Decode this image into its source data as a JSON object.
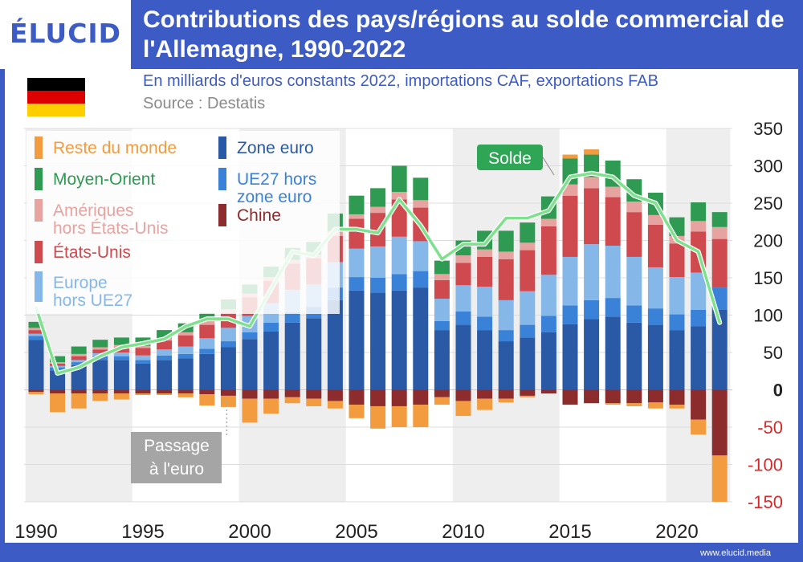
{
  "brand": {
    "logo_text": "ÉLUCID",
    "footer_url": "www.elucid.media"
  },
  "header": {
    "title": "Contributions des pays/régions au solde commercial de l'Allemagne, 1990-2022",
    "subtitle": "En milliards d'euros constants 2022, importations CAF, exportations FAB",
    "source": "Source : Destatis"
  },
  "flag_colors": [
    "#000000",
    "#dd0000",
    "#ffce00"
  ],
  "colors": {
    "zone_euro": "#2a5aa5",
    "ue27_hors_ze": "#3a82d8",
    "europe_hors_ue": "#86b7e9",
    "etats_unis": "#cf4a4f",
    "ameriques_hors_us": "#e7a3a0",
    "moyen_orient": "#2f9a52",
    "reste_du_monde": "#f39b3f",
    "chine": "#8c2c2c",
    "solde": "#7fe08e",
    "negative_tick": "#d62a2a"
  },
  "chart_data": {
    "type": "bar",
    "stacked": true,
    "x": [
      1990,
      1991,
      1992,
      1993,
      1994,
      1995,
      1996,
      1997,
      1998,
      1999,
      2000,
      2001,
      2002,
      2003,
      2004,
      2005,
      2006,
      2007,
      2008,
      2009,
      2010,
      2011,
      2012,
      2013,
      2014,
      2015,
      2016,
      2017,
      2018,
      2019,
      2020,
      2021,
      2022
    ],
    "ylim": [
      -150,
      350
    ],
    "yticks": [
      350,
      300,
      250,
      200,
      150,
      100,
      50,
      0,
      -50,
      -100,
      -150
    ],
    "xticks": [
      1990,
      1995,
      2000,
      2005,
      2010,
      2015,
      2020
    ],
    "grid": true,
    "legend": "top-left",
    "series": [
      {
        "key": "zone_euro",
        "name": "Zone euro",
        "values": [
          67,
          26,
          33,
          40,
          40,
          35,
          40,
          42,
          48,
          57,
          68,
          78,
          90,
          96,
          120,
          133,
          130,
          133,
          137,
          80,
          87,
          80,
          65,
          70,
          77,
          88,
          95,
          98,
          90,
          87,
          80,
          85,
          107
        ]
      },
      {
        "key": "ue27_hors_ze",
        "name": "UE27 hors zone euro",
        "values": [
          5,
          4,
          4,
          5,
          5,
          5,
          6,
          6,
          7,
          8,
          9,
          12,
          14,
          15,
          17,
          18,
          20,
          22,
          22,
          12,
          18,
          18,
          15,
          17,
          22,
          25,
          25,
          25,
          23,
          22,
          21,
          22,
          30
        ]
      },
      {
        "key": "europe_hors_ue",
        "name": "Europe hors UE27",
        "values": [
          3,
          2,
          3,
          4,
          5,
          6,
          8,
          10,
          14,
          18,
          22,
          26,
          30,
          30,
          34,
          38,
          42,
          50,
          40,
          30,
          35,
          40,
          40,
          45,
          55,
          65,
          75,
          70,
          65,
          55,
          50,
          50,
          0
        ]
      },
      {
        "key": "etats_unis",
        "name": "États-Unis",
        "values": [
          5,
          3,
          5,
          5,
          7,
          10,
          12,
          15,
          18,
          20,
          25,
          30,
          35,
          35,
          35,
          40,
          45,
          50,
          45,
          25,
          30,
          40,
          55,
          55,
          65,
          82,
          75,
          65,
          60,
          57,
          45,
          55,
          65
        ]
      },
      {
        "key": "ameriques_hors_us",
        "name": "Amériques hors États-Unis",
        "values": [
          3,
          2,
          3,
          3,
          3,
          3,
          3,
          4,
          5,
          5,
          5,
          5,
          5,
          5,
          6,
          6,
          8,
          10,
          10,
          8,
          10,
          10,
          10,
          10,
          10,
          15,
          15,
          14,
          14,
          13,
          10,
          14,
          16
        ]
      },
      {
        "key": "moyen_orient",
        "name": "Moyen-Orient",
        "values": [
          8,
          8,
          10,
          10,
          10,
          11,
          11,
          12,
          11,
          13,
          12,
          14,
          16,
          17,
          24,
          25,
          25,
          35,
          30,
          18,
          20,
          25,
          28,
          27,
          30,
          35,
          30,
          35,
          30,
          30,
          25,
          25,
          20
        ]
      },
      {
        "key": "reste_du_monde",
        "name": "Reste du monde",
        "values": [
          0,
          0,
          0,
          0,
          0,
          0,
          0,
          0,
          0,
          0,
          0,
          0,
          0,
          0,
          0,
          0,
          0,
          0,
          0,
          0,
          0,
          0,
          0,
          0,
          0,
          5,
          7,
          0,
          0,
          0,
          0,
          0,
          0
        ]
      },
      {
        "key": "chine",
        "name": "Chine",
        "values": [
          -3,
          -5,
          -5,
          -5,
          -5,
          -5,
          -5,
          -5,
          -6,
          -8,
          -12,
          -12,
          -10,
          -12,
          -15,
          -20,
          -22,
          -22,
          -20,
          -10,
          -15,
          -12,
          -12,
          -8,
          -5,
          -20,
          -18,
          -18,
          -18,
          -17,
          -20,
          -40,
          -88
        ]
      },
      {
        "key": "reste_du_monde_neg",
        "name": "Reste du monde",
        "values": [
          -3,
          -25,
          -20,
          -10,
          -8,
          -2,
          -2,
          -5,
          -15,
          -15,
          -32,
          -20,
          -8,
          -10,
          -10,
          -18,
          -30,
          -28,
          -30,
          -10,
          -20,
          -15,
          -5,
          -2,
          0,
          0,
          0,
          -2,
          -4,
          -8,
          -5,
          -20,
          -62
        ]
      }
    ],
    "line": {
      "name": "Solde",
      "values": [
        110,
        22,
        30,
        45,
        57,
        62,
        68,
        85,
        95,
        95,
        85,
        135,
        185,
        180,
        215,
        215,
        210,
        255,
        220,
        175,
        195,
        195,
        230,
        230,
        240,
        285,
        290,
        285,
        260,
        250,
        200,
        185,
        90
      ]
    },
    "annotation": {
      "text": "Passage à l'euro",
      "x": 1999
    }
  },
  "legend": {
    "reste_du_monde": "Reste du monde",
    "zone_euro": "Zone euro",
    "moyen_orient": "Moyen-Orient",
    "ue27_hors_ze": "UE27 hors zone euro",
    "ameriques_hors_us": "Amériques hors États-Unis",
    "chine": "Chine",
    "etats_unis": "États-Unis",
    "europe_hors_ue": "Europe hors UE27"
  }
}
